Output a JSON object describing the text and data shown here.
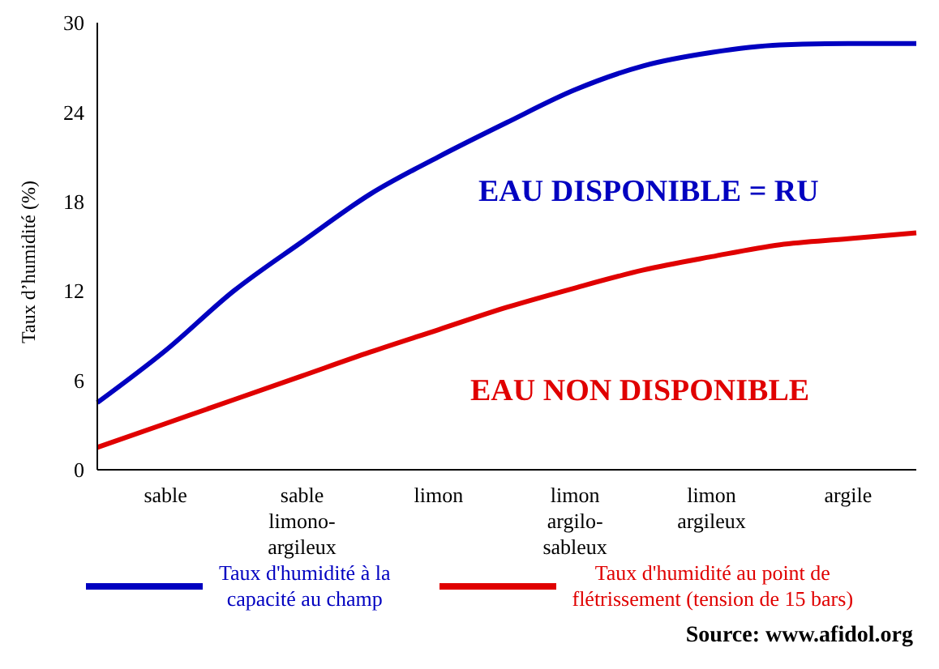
{
  "chart_data": {
    "type": "line",
    "ylabel": "Taux d’humidité (%)",
    "categories": [
      null,
      "sable",
      null,
      "sable\nlimono-\nargileux",
      null,
      "limon",
      null,
      "limon\nargilo-\nsableux",
      null,
      "limon\nargileux",
      null,
      "argile",
      null
    ],
    "series": [
      {
        "name": "Taux d'humidité à la\ncapacité au champ",
        "color": "#0000c0",
        "values": [
          4.5,
          8.0,
          12.0,
          15.3,
          18.5,
          21.0,
          23.3,
          25.5,
          27.1,
          28.0,
          28.5,
          28.6,
          28.6
        ]
      },
      {
        "name": "Taux d'humidité au point de\nflétrissement (tension de 15 bars)",
        "color": "#e00000",
        "values": [
          1.5,
          3.1,
          4.7,
          6.3,
          7.9,
          9.4,
          10.9,
          12.2,
          13.4,
          14.3,
          15.1,
          15.5,
          15.9
        ]
      }
    ],
    "ylim": [
      0,
      30
    ],
    "yticks": [
      0,
      6,
      12,
      18,
      24,
      30
    ],
    "grid": false,
    "legend": "bottom",
    "marker": "none",
    "line_style": "solid",
    "annotations": [
      "EAU DISPONIBLE = RU",
      "EAU NON DISPONIBLE",
      "Source: www.afidol.org"
    ]
  }
}
